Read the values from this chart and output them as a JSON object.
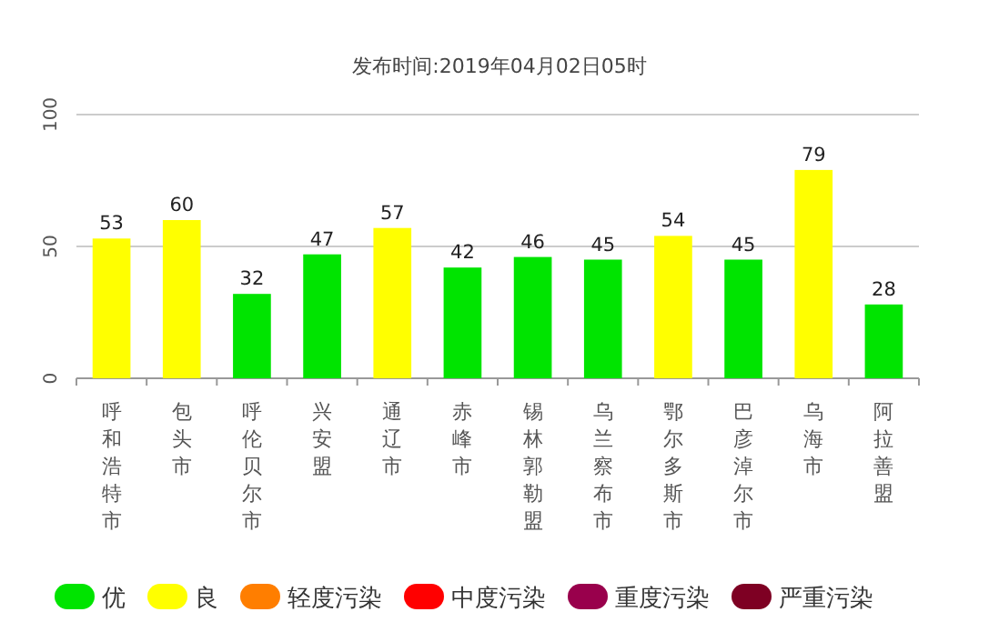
{
  "chart_data": {
    "type": "bar",
    "title": "发布时间:2019年04月02日05时",
    "categories": [
      "呼和浩特市",
      "包头市",
      "呼伦贝尔市",
      "兴安盟",
      "通辽市",
      "赤峰市",
      "锡林郭勒盟",
      "乌兰察布市",
      "鄂尔多斯市",
      "巴彦淖尔市",
      "乌海市",
      "阿拉善盟"
    ],
    "stacked": true,
    "series": [
      {
        "name": "优",
        "color": "#00e400",
        "values": [
          null,
          null,
          32,
          47,
          null,
          42,
          46,
          45,
          null,
          45,
          null,
          28
        ]
      },
      {
        "name": "良",
        "color": "#ffff00",
        "values": [
          53,
          60,
          null,
          null,
          57,
          null,
          null,
          null,
          54,
          null,
          79,
          null
        ]
      },
      {
        "name": "轻度污染",
        "color": "#ff7e00",
        "values": [
          null,
          null,
          null,
          null,
          null,
          null,
          null,
          null,
          null,
          null,
          null,
          null
        ]
      },
      {
        "name": "中度污染",
        "color": "#ff0000",
        "values": [
          null,
          null,
          null,
          null,
          null,
          null,
          null,
          null,
          null,
          null,
          null,
          null
        ]
      },
      {
        "name": "重度污染",
        "color": "#99004c",
        "values": [
          null,
          null,
          null,
          null,
          null,
          null,
          null,
          null,
          null,
          null,
          null,
          null
        ]
      },
      {
        "name": "严重污染",
        "color": "#7e0023",
        "values": [
          null,
          null,
          null,
          null,
          null,
          null,
          null,
          null,
          null,
          null,
          null,
          null
        ]
      }
    ],
    "ylim": [
      0,
      100
    ],
    "yticks": [
      0,
      50,
      100
    ],
    "grid": "y",
    "legend": "bottom",
    "data_labels": true
  }
}
